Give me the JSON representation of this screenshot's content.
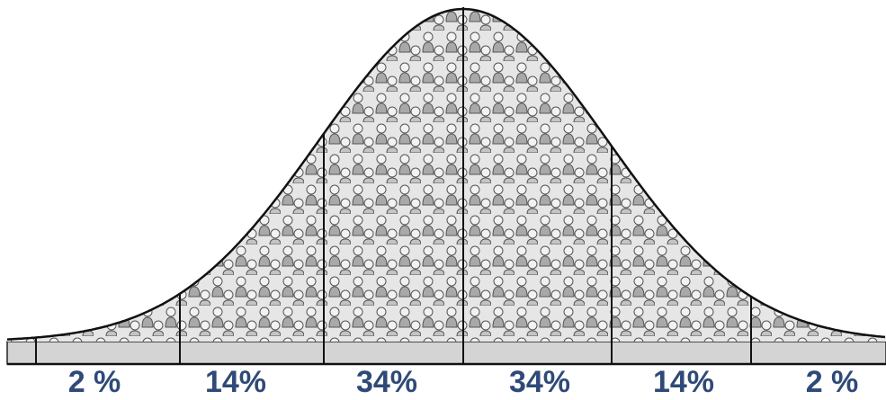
{
  "chart_data": {
    "type": "bell",
    "values": [
      2,
      14,
      34,
      34,
      14,
      2
    ],
    "value_labels": [
      "2 %",
      "14%",
      "34%",
      "34%",
      "14%",
      "2 %"
    ],
    "color": "#d9d9d9"
  }
}
